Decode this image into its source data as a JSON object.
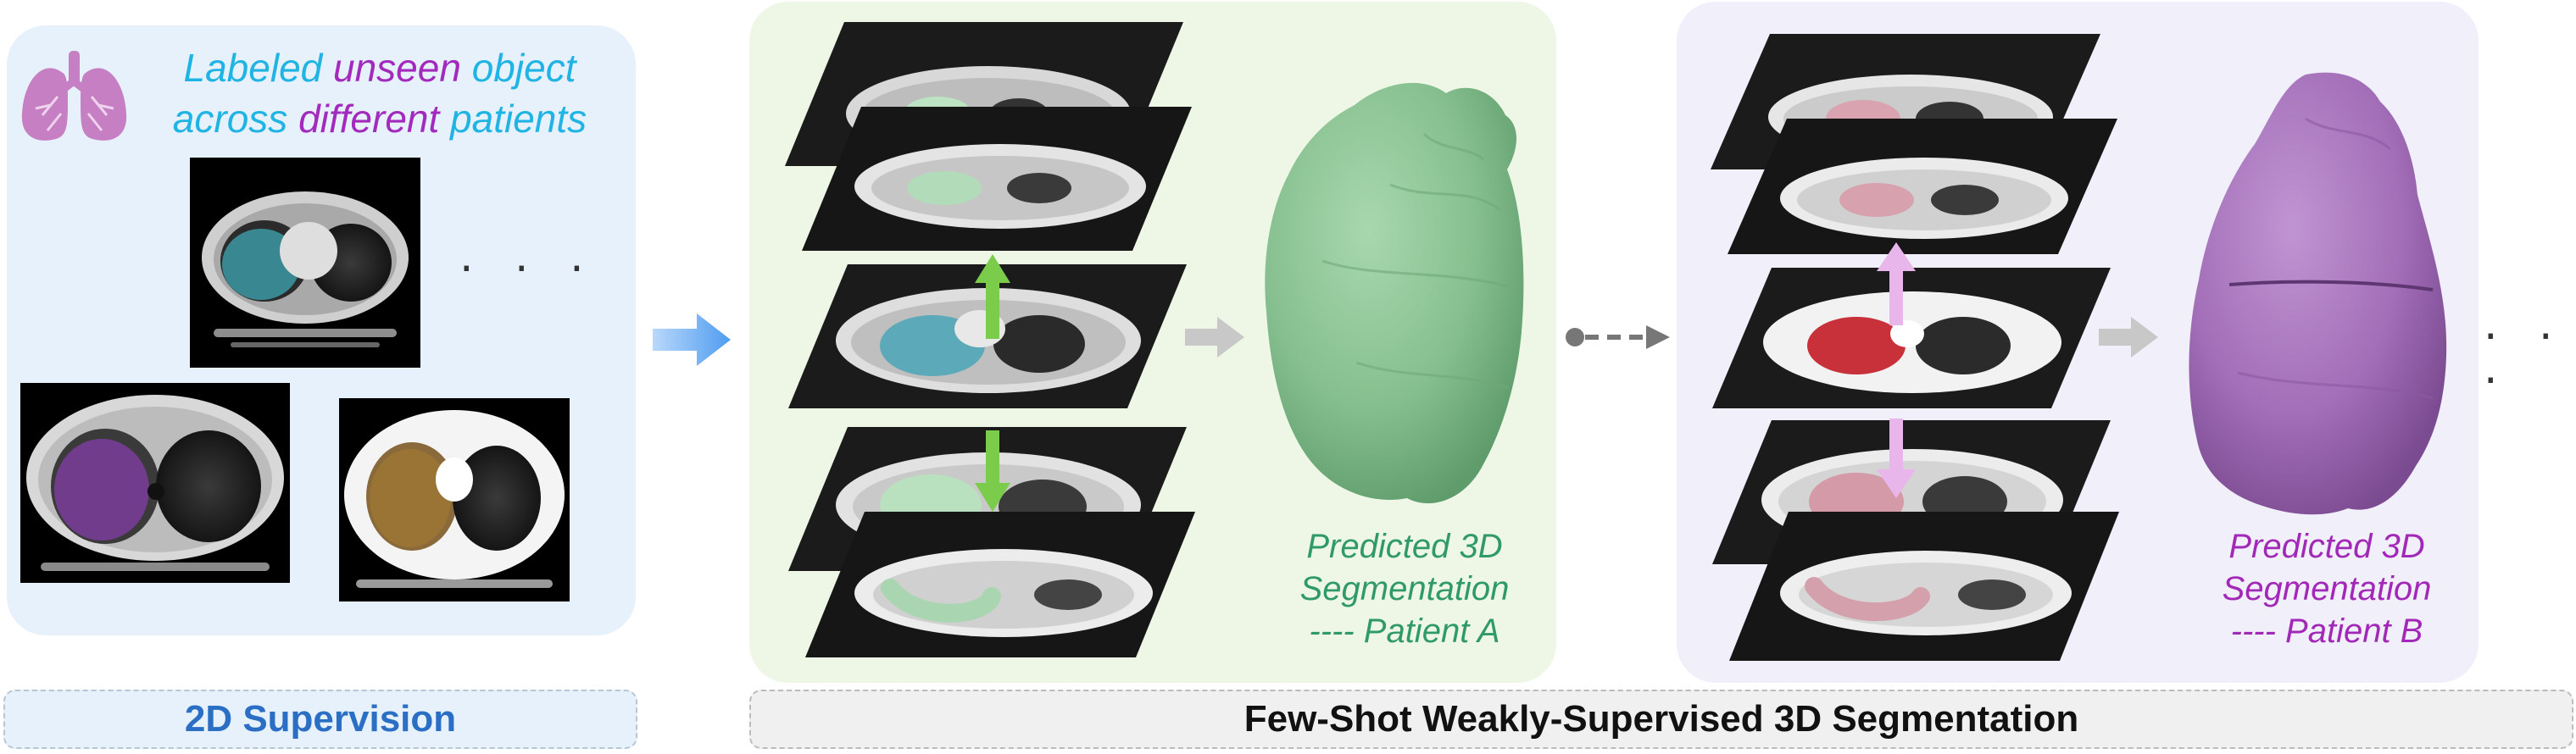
{
  "left_panel": {
    "title_line1": [
      "Labeled",
      "unseen",
      "object"
    ],
    "title_line2": [
      "across",
      "different",
      "patients"
    ],
    "ellipsis": "· · ·",
    "icon": "lungs-icon"
  },
  "patient_a": {
    "prediction_line1": "Predicted 3D",
    "prediction_line2": "Segmentation",
    "prediction_line3": "---- Patient A"
  },
  "patient_b": {
    "prediction_line1": "Predicted 3D",
    "prediction_line2": "Segmentation",
    "prediction_line3": "---- Patient B"
  },
  "right_ellipsis": "· · ·",
  "captions": {
    "supervision": "2D Supervision",
    "few_shot": "Few-Shot Weakly-Supervised 3D Segmentation"
  },
  "colors": {
    "cyan_text": "#1fb4e3",
    "magenta_text": "#a22bbd",
    "green_text": "#2f9a68",
    "purple_text": "#a229b7",
    "supervision_blue": "#2a6fc4",
    "green_arrow": "#7ccc4c",
    "pink_arrow": "#e8b6ea",
    "blue_arrow": "#66a9f2",
    "mesh_green": "#8cc597",
    "mesh_purple": "#a775bb"
  }
}
